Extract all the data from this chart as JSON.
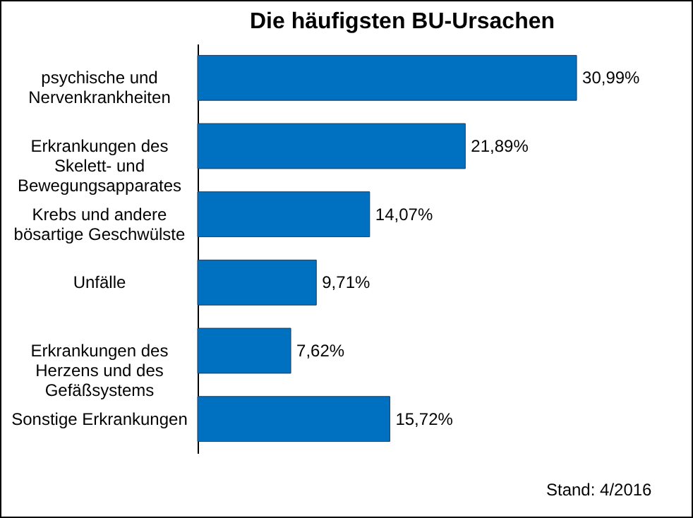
{
  "chart_data": {
    "type": "bar",
    "orientation": "horizontal",
    "title": "Die häufigsten BU-Ursachen",
    "categories": [
      "psychische und Nervenkrankheiten",
      "Erkrankungen des Skelett- und Bewegungsapparates",
      "Krebs und andere bösartige Geschwülste",
      "Unfälle",
      "Erkrankungen des Herzens und des Gefäßsystems",
      "Sonstige Erkrankungen"
    ],
    "values": [
      30.99,
      21.89,
      14.07,
      9.71,
      7.62,
      15.72
    ],
    "value_labels": [
      "30,99%",
      "21,89%",
      "14,07%",
      "9,71%",
      "7,62%",
      "15,72%"
    ],
    "color": "#0070c0",
    "annotations": [
      "Stand: 4/2016"
    ]
  }
}
